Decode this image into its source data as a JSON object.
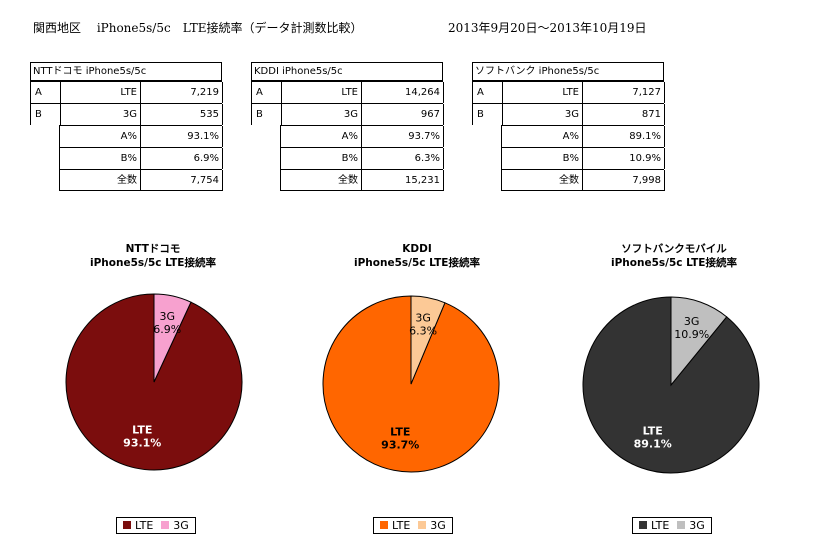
{
  "header": {
    "title": "関西地区　 iPhone5s/5c　LTE接続率（データ計測数比較）",
    "period": "2013年9月20日～2013年10月19日"
  },
  "tables": [
    {
      "title": "NTTドコモ iPhone5s/5c",
      "rows": [
        {
          "letter": "A",
          "label": "LTE",
          "value": "7,219"
        },
        {
          "letter": "B",
          "label": "3G",
          "value": "535"
        }
      ],
      "summary": [
        {
          "label": "A%",
          "value": "93.1%"
        },
        {
          "label": "B%",
          "value": "6.9%"
        },
        {
          "label": "全数",
          "value": "7,754"
        }
      ]
    },
    {
      "title": "KDDI iPhone5s/5c",
      "rows": [
        {
          "letter": "A",
          "label": "LTE",
          "value": "14,264"
        },
        {
          "letter": "B",
          "label": "3G",
          "value": "967"
        }
      ],
      "summary": [
        {
          "label": "A%",
          "value": "93.7%"
        },
        {
          "label": "B%",
          "value": "6.3%"
        },
        {
          "label": "全数",
          "value": "15,231"
        }
      ]
    },
    {
      "title": "ソフトバンク iPhone5s/5c",
      "rows": [
        {
          "letter": "A",
          "label": "LTE",
          "value": "7,127"
        },
        {
          "letter": "B",
          "label": "3G",
          "value": "871"
        }
      ],
      "summary": [
        {
          "label": "A%",
          "value": "89.1%"
        },
        {
          "label": "B%",
          "value": "10.9%"
        },
        {
          "label": "全数",
          "value": "7,998"
        }
      ]
    }
  ],
  "chart_data": [
    {
      "type": "pie",
      "title": [
        "NTTドコモ",
        "iPhone5s/5c LTE接続率"
      ],
      "legend_position": "bottom",
      "slices": [
        {
          "name": "LTE",
          "value": 93.1,
          "label": "93.1%",
          "color": "#7b0d0d",
          "label_color": "#ffffff"
        },
        {
          "name": "3G",
          "value": 6.9,
          "label": "6.9%",
          "color": "#f7a1cf",
          "label_color": "#000000"
        }
      ]
    },
    {
      "type": "pie",
      "title": [
        "KDDI",
        "iPhone5s/5c LTE接続率"
      ],
      "legend_position": "bottom",
      "slices": [
        {
          "name": "LTE",
          "value": 93.7,
          "label": "93.7%",
          "color": "#ff6600",
          "label_color": "#000000"
        },
        {
          "name": "3G",
          "value": 6.3,
          "label": "6.3%",
          "color": "#fcc996",
          "label_color": "#000000"
        }
      ]
    },
    {
      "type": "pie",
      "title": [
        "ソフトバンクモバイル",
        "iPhone5s/5c LTE接続率"
      ],
      "legend_position": "bottom",
      "slices": [
        {
          "name": "LTE",
          "value": 89.1,
          "label": "89.1%",
          "color": "#333333",
          "label_color": "#ffffff"
        },
        {
          "name": "3G",
          "value": 10.9,
          "label": "10.9%",
          "color": "#bfbfbf",
          "label_color": "#000000"
        }
      ]
    }
  ]
}
